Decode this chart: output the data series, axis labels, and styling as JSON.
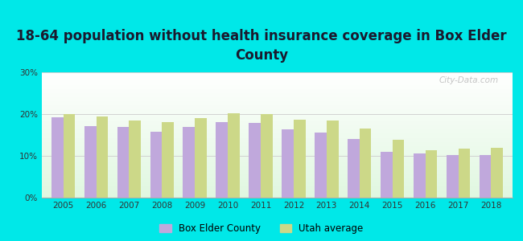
{
  "title": "18-64 population without health insurance coverage in Box Elder\nCounty",
  "years": [
    2005,
    2006,
    2007,
    2008,
    2009,
    2010,
    2011,
    2012,
    2013,
    2014,
    2015,
    2016,
    2017,
    2018
  ],
  "box_elder": [
    19.2,
    17.2,
    17.0,
    15.7,
    17.0,
    18.0,
    17.8,
    16.4,
    15.6,
    14.0,
    11.0,
    10.5,
    10.2,
    10.2
  ],
  "utah_avg": [
    20.0,
    19.4,
    18.5,
    18.0,
    19.0,
    20.2,
    20.0,
    18.7,
    18.5,
    16.5,
    13.8,
    11.3,
    11.7,
    12.0
  ],
  "bar_color_county": "#c0a8dc",
  "bar_color_utah": "#ccd888",
  "background_outer": "#00e8e8",
  "ylim": [
    0,
    30
  ],
  "yticks": [
    0,
    10,
    20,
    30
  ],
  "ytick_labels": [
    "0%",
    "10%",
    "20%",
    "30%"
  ],
  "legend_county": "Box Elder County",
  "legend_utah": "Utah average",
  "title_fontsize": 12,
  "title_color": "#1a1a2e",
  "bar_width": 0.36
}
